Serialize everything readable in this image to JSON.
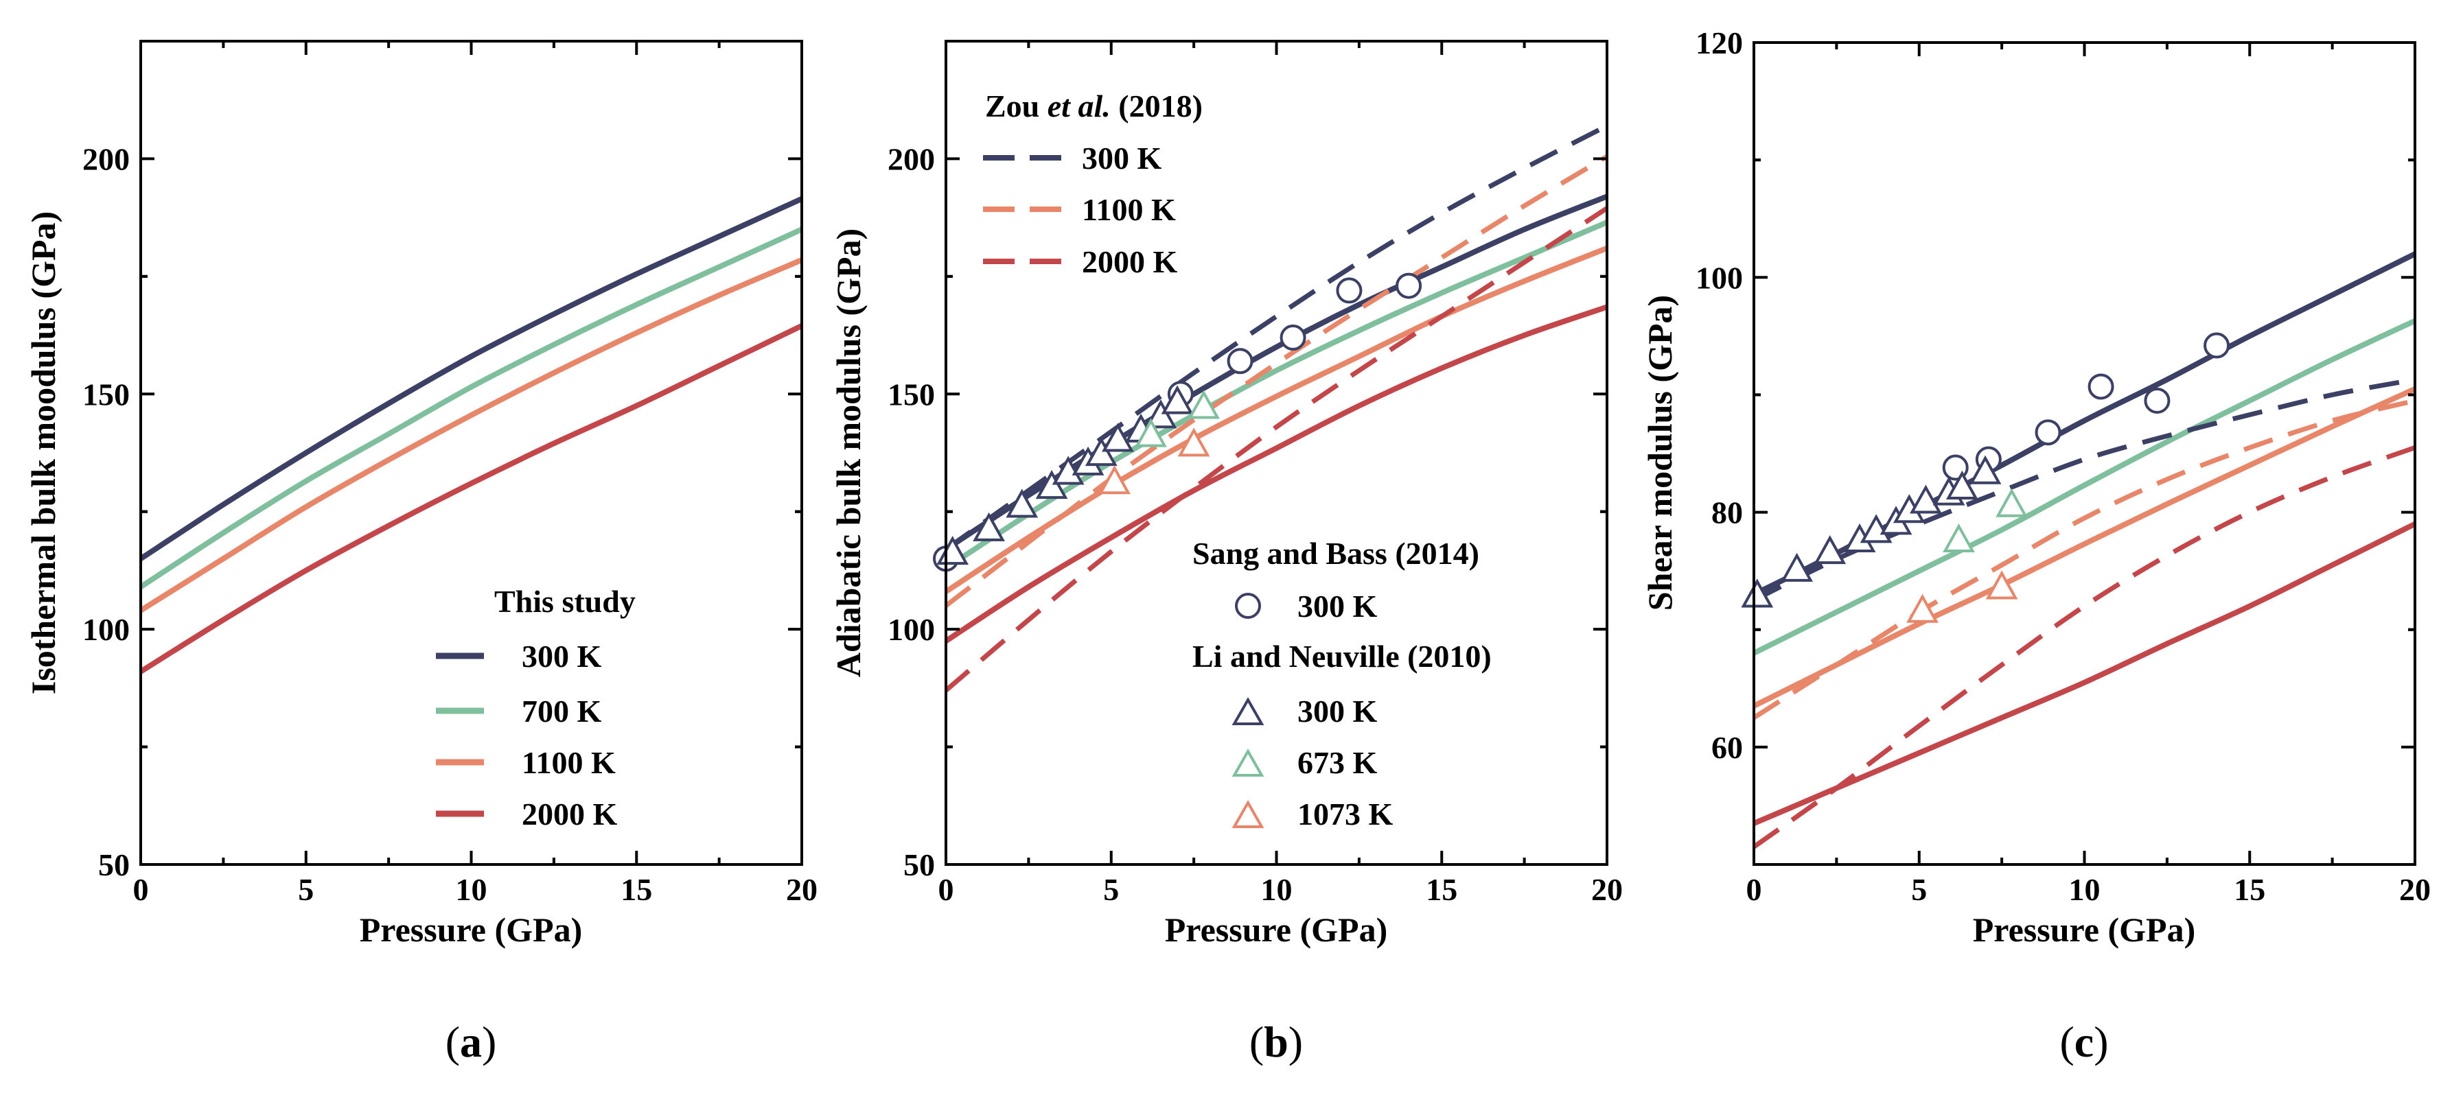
{
  "colors": {
    "300": "#3b4064",
    "700": "#7fbf9e",
    "1100": "#e8866a",
    "2000": "#c3474a"
  },
  "panel_labels": [
    {
      "open": "(",
      "letter": "a",
      "close": ")"
    },
    {
      "open": "(",
      "letter": "b",
      "close": ")"
    },
    {
      "open": "(",
      "letter": "c",
      "close": ")"
    }
  ],
  "chart_data": [
    {
      "type": "line",
      "panel": "a",
      "title": "",
      "xlabel": "Pressure (GPa)",
      "ylabel": "Isothermal bulk moodulus (GPa)",
      "xlim": [
        0,
        20
      ],
      "ylim": [
        50,
        225
      ],
      "xticks": [
        0,
        5,
        10,
        15,
        20
      ],
      "yticks": [
        50,
        100,
        150,
        200
      ],
      "x": [
        0,
        2.5,
        5,
        7.5,
        10,
        12.5,
        15,
        17.5,
        20
      ],
      "series": [
        {
          "name": "300 K",
          "color_key": "300",
          "dash": "solid",
          "values": [
            115,
            126.5,
            137.5,
            148,
            158,
            167,
            175.5,
            183.5,
            191.5
          ]
        },
        {
          "name": "700 K",
          "color_key": "700",
          "dash": "solid",
          "values": [
            109,
            120.5,
            131.5,
            141.5,
            151.5,
            160.5,
            169,
            177,
            185
          ]
        },
        {
          "name": "1100 K",
          "color_key": "1100",
          "dash": "solid",
          "values": [
            104,
            115,
            126,
            136,
            145.5,
            154.5,
            163,
            171,
            178.5
          ]
        },
        {
          "name": "2000 K",
          "color_key": "2000",
          "dash": "solid",
          "values": [
            91,
            102,
            112.5,
            122,
            131,
            139.5,
            147.5,
            156,
            164.5
          ]
        }
      ],
      "legend": {
        "title": "This study",
        "entries": [
          {
            "label": "300 K",
            "color_key": "300",
            "style": "solid"
          },
          {
            "label": "700 K",
            "color_key": "700",
            "style": "solid"
          },
          {
            "label": "1100 K",
            "color_key": "1100",
            "style": "solid"
          },
          {
            "label": "2000 K",
            "color_key": "2000",
            "style": "solid"
          }
        ]
      }
    },
    {
      "type": "line",
      "panel": "b",
      "title": "",
      "xlabel": "Pressure (GPa)",
      "ylabel": "Adiabatic bulk modulus (GPa)",
      "xlim": [
        0,
        20
      ],
      "ylim": [
        50,
        225
      ],
      "xticks": [
        0,
        5,
        10,
        15,
        20
      ],
      "yticks": [
        50,
        100,
        150,
        200
      ],
      "x": [
        0,
        2.5,
        5,
        7.5,
        10,
        12.5,
        15,
        17.5,
        20
      ],
      "series": [
        {
          "name": "This study 300 K",
          "color_key": "300",
          "dash": "solid",
          "values": [
            117,
            128.5,
            139.5,
            150,
            160,
            169,
            177,
            185,
            192
          ]
        },
        {
          "name": "This study 700 K",
          "color_key": "700",
          "dash": "solid",
          "values": [
            113,
            124.5,
            135.5,
            145.5,
            155,
            163.5,
            171.5,
            179,
            186.5
          ]
        },
        {
          "name": "This study 1100 K",
          "color_key": "1100",
          "dash": "solid",
          "values": [
            108,
            119.5,
            130.5,
            140.5,
            149.5,
            158,
            166.5,
            174,
            181
          ]
        },
        {
          "name": "This study 2000 K",
          "color_key": "2000",
          "dash": "solid",
          "values": [
            97.5,
            109,
            119.5,
            129.5,
            138.5,
            147.5,
            155.5,
            162.5,
            168.5
          ]
        },
        {
          "name": "Zou et al. 300 K",
          "color_key": "300",
          "dash": "dashed",
          "values": [
            117,
            129.5,
            142,
            154.5,
            166.5,
            178,
            188.5,
            198,
            207
          ]
        },
        {
          "name": "Zou et al. 1100 K",
          "color_key": "1100",
          "dash": "dashed",
          "values": [
            105,
            118.5,
            132,
            144.5,
            156.5,
            168,
            179,
            190,
            200.5
          ]
        },
        {
          "name": "Zou et al. 2000 K",
          "color_key": "2000",
          "dash": "dashed",
          "values": [
            87,
            102,
            116.5,
            130,
            143,
            155,
            166.5,
            178,
            189.5
          ]
        }
      ],
      "markers": [
        {
          "name": "Sang and Bass (2014) 300 K",
          "shape": "circle",
          "color_key": "300",
          "x": [
            0,
            7.1,
            8.9,
            10.5,
            12.2,
            14
          ],
          "y": [
            115,
            150,
            157,
            162,
            172,
            173
          ]
        },
        {
          "name": "Li and Neuville (2010) 300 K",
          "shape": "triangle",
          "color_key": "300",
          "x": [
            0.2,
            1.3,
            2.3,
            3.2,
            3.7,
            4.3,
            4.7,
            5.2,
            5.9,
            6.5,
            7.0
          ],
          "y": [
            116,
            121,
            126,
            130,
            133,
            135,
            137,
            140,
            142,
            145,
            148
          ]
        },
        {
          "name": "Li and Neuville (2010) 673 K",
          "shape": "triangle",
          "color_key": "700",
          "x": [
            6.2,
            7.8
          ],
          "y": [
            141,
            147
          ]
        },
        {
          "name": "Li and Neuville (2010) 1073 K",
          "shape": "triangle",
          "color_key": "1100",
          "x": [
            5.1,
            7.5
          ],
          "y": [
            131,
            139
          ]
        }
      ],
      "legend_zou": {
        "title_pre": "Zou ",
        "title_em": "et al.",
        "title_post": " (2018)",
        "entries": [
          {
            "label": "300 K",
            "color_key": "300",
            "style": "dashed"
          },
          {
            "label": "1100 K",
            "color_key": "1100",
            "style": "dashed"
          },
          {
            "label": "2000 K",
            "color_key": "2000",
            "style": "dashed"
          }
        ]
      },
      "legend_exp": {
        "group1_title": "Sang and Bass (2014)",
        "group1_entries": [
          {
            "label": "300 K",
            "shape": "circle",
            "color_key": "300"
          }
        ],
        "group2_title": "Li and Neuville (2010)",
        "group2_entries": [
          {
            "label": "300 K",
            "shape": "triangle",
            "color_key": "300"
          },
          {
            "label": "673 K",
            "shape": "triangle",
            "color_key": "700"
          },
          {
            "label": "1073 K",
            "shape": "triangle",
            "color_key": "1100"
          }
        ]
      }
    },
    {
      "type": "line",
      "panel": "c",
      "title": "",
      "xlabel": "Pressure (GPa)",
      "ylabel": "Shear modulus (GPa)",
      "xlim": [
        0,
        20
      ],
      "ylim": [
        50,
        120
      ],
      "xticks": [
        0,
        5,
        10,
        15,
        20
      ],
      "yticks": [
        60,
        80,
        100,
        120
      ],
      "x": [
        0,
        2.5,
        5,
        7.5,
        10,
        12.5,
        15,
        17.5,
        20
      ],
      "series": [
        {
          "name": "This study 300 K",
          "color_key": "300",
          "dash": "solid",
          "values": [
            73,
            76.5,
            80.3,
            84,
            87.8,
            91.3,
            95,
            98.5,
            102
          ]
        },
        {
          "name": "This study 700 K",
          "color_key": "700",
          "dash": "solid",
          "values": [
            68,
            71.5,
            75,
            78.5,
            82.3,
            86,
            89.5,
            93,
            96.3
          ]
        },
        {
          "name": "This study 1100 K",
          "color_key": "1100",
          "dash": "solid",
          "values": [
            63.5,
            67,
            70.5,
            73.8,
            77.3,
            80.7,
            84,
            87.3,
            90.5
          ]
        },
        {
          "name": "This study 2000 K",
          "color_key": "2000",
          "dash": "solid",
          "values": [
            53.5,
            56.5,
            59.5,
            62.5,
            65.5,
            68.8,
            72,
            75.5,
            79
          ]
        },
        {
          "name": "Zou et al. 300 K",
          "color_key": "300",
          "dash": "dashed",
          "values": [
            72.5,
            76,
            79,
            81.8,
            84.5,
            86.5,
            88.3,
            90,
            91.3
          ]
        },
        {
          "name": "Zou et al. 1100 K",
          "color_key": "1100",
          "dash": "dashed",
          "values": [
            62.5,
            67,
            71.5,
            75.5,
            79.5,
            82.8,
            85.5,
            87.8,
            89.5
          ]
        },
        {
          "name": "Zou et al. 2000 K",
          "color_key": "2000",
          "dash": "dashed",
          "values": [
            51.5,
            56.5,
            61.8,
            67,
            72,
            76.3,
            80,
            83,
            85.5
          ]
        }
      ],
      "markers": [
        {
          "name": "Sang and Bass (2014) 300 K",
          "shape": "circle",
          "color_key": "300",
          "x": [
            6.1,
            7.1,
            8.9,
            10.5,
            12.2,
            14
          ],
          "y": [
            83.8,
            84.5,
            86.8,
            90.7,
            89.5,
            94.2
          ]
        },
        {
          "name": "Li and Neuville (2010) 300 K",
          "shape": "triangle",
          "color_key": "300",
          "x": [
            0.1,
            1.3,
            2.3,
            3.2,
            3.7,
            4.3,
            4.7,
            5.2,
            5.9,
            6.3,
            7.0
          ],
          "y": [
            72.8,
            75,
            76.5,
            77.5,
            78.3,
            79,
            80,
            80.8,
            81.5,
            82,
            83.3
          ]
        },
        {
          "name": "Li and Neuville (2010) 673 K",
          "shape": "triangle",
          "color_key": "700",
          "x": [
            6.2,
            7.8
          ],
          "y": [
            77.5,
            80.5
          ]
        },
        {
          "name": "Li and Neuville (2010) 1073 K",
          "shape": "triangle",
          "color_key": "1100",
          "x": [
            5.1,
            7.5
          ],
          "y": [
            71.5,
            73.5
          ]
        }
      ]
    }
  ]
}
